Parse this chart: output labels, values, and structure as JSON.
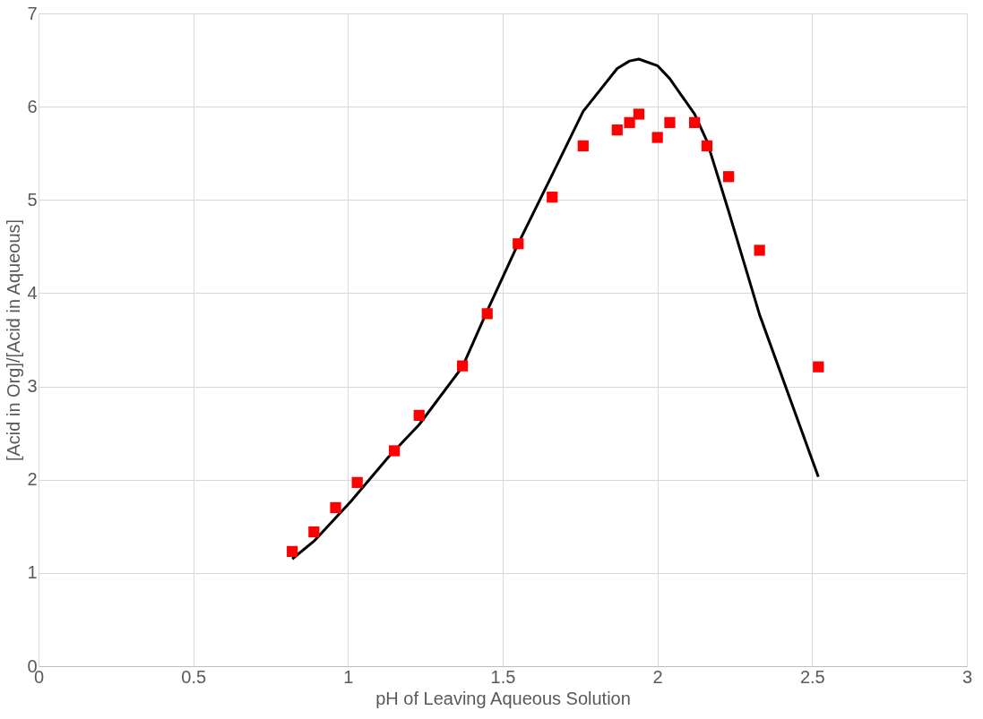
{
  "chart_data": {
    "type": "scatter",
    "xlabel": "pH of Leaving Aqueous Solution",
    "ylabel": "[Acid in Org]/[Acid in Aqueous]",
    "xlim": [
      0,
      3
    ],
    "xticks": [
      0,
      0.5,
      1,
      1.5,
      2,
      2.5,
      3
    ],
    "ylim": [
      0,
      7
    ],
    "yticks": [
      0,
      1,
      2,
      3,
      4,
      5,
      6,
      7
    ],
    "grid": true,
    "series": [
      {
        "marker": "square",
        "color": "#ff0000",
        "x": [
          0.82,
          0.89,
          0.96,
          1.03,
          1.15,
          1.23,
          1.37,
          1.45,
          1.55,
          1.66,
          1.76,
          1.87,
          1.91,
          1.94,
          2.0,
          2.04,
          2.12,
          2.16,
          2.23,
          2.33,
          2.52
        ],
        "values": [
          1.23,
          1.44,
          1.7,
          1.97,
          2.31,
          2.69,
          3.22,
          3.78,
          4.53,
          5.03,
          5.58,
          5.75,
          5.83,
          5.92,
          5.67,
          5.83,
          5.83,
          5.58,
          5.25,
          4.46,
          3.21
        ]
      },
      {
        "type": "line",
        "marker": "none",
        "line_style": "solid",
        "color": "#000000",
        "x": [
          0.82,
          0.89,
          1.01,
          1.13,
          1.23,
          1.37,
          1.45,
          1.55,
          1.66,
          1.76,
          1.87,
          1.91,
          1.94,
          2.0,
          2.04,
          2.12,
          2.16,
          2.23,
          2.33,
          2.52
        ],
        "values": [
          1.15,
          1.34,
          1.77,
          2.24,
          2.59,
          3.21,
          3.81,
          4.53,
          5.27,
          5.95,
          6.41,
          6.49,
          6.51,
          6.44,
          6.3,
          5.92,
          5.63,
          4.88,
          3.77,
          2.03
        ]
      }
    ]
  }
}
